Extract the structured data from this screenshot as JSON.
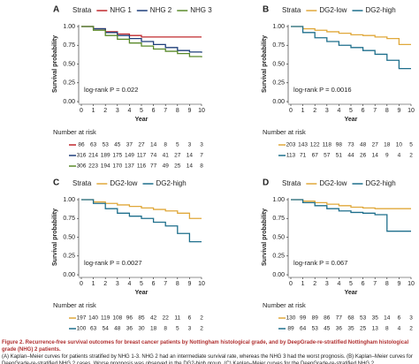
{
  "chart_data": [
    {
      "type": "line",
      "panel_label": "A",
      "legend_title": "Strata",
      "xlabel": "Year",
      "ylabel": "Survival probability",
      "annotation": "log-rank P = 0.022",
      "risk_table_title": "Number at risk",
      "x": [
        0,
        1,
        2,
        3,
        4,
        5,
        6,
        7,
        8,
        9,
        10
      ],
      "xlim": [
        0,
        10
      ],
      "xticks": [
        0,
        1,
        2,
        3,
        4,
        5,
        6,
        7,
        8,
        9,
        10
      ],
      "ylim": [
        0,
        1
      ],
      "yticks": [
        {
          "value": 0,
          "label": "0.00"
        },
        {
          "value": 0.25,
          "label": "0.25"
        },
        {
          "value": 0.5,
          "label": "0.50"
        },
        {
          "value": 0.75,
          "label": "0.75"
        },
        {
          "value": 1,
          "label": "1.00"
        }
      ],
      "series": [
        {
          "name": "NHG 1",
          "color": "#c0282d",
          "values": [
            1,
            0.97,
            0.93,
            0.9,
            0.88,
            0.86,
            0.86,
            0.86,
            0.86,
            0.86,
            0.86
          ],
          "at_risk": [
            86,
            63,
            53,
            45,
            37,
            27,
            14,
            8,
            5,
            3,
            3
          ]
        },
        {
          "name": "NHG 2",
          "color": "#1f3f7a",
          "values": [
            1,
            0.97,
            0.92,
            0.88,
            0.84,
            0.8,
            0.76,
            0.72,
            0.68,
            0.66,
            0.65
          ],
          "at_risk": [
            316,
            214,
            189,
            175,
            149,
            117,
            74,
            41,
            27,
            14,
            7
          ]
        },
        {
          "name": "NHG 3",
          "color": "#5a8a2a",
          "values": [
            1,
            0.95,
            0.88,
            0.83,
            0.78,
            0.74,
            0.7,
            0.67,
            0.64,
            0.6,
            0.59
          ],
          "at_risk": [
            306,
            223,
            194,
            170,
            137,
            116,
            77,
            49,
            25,
            14,
            8
          ]
        }
      ]
    },
    {
      "type": "line",
      "panel_label": "B",
      "legend_title": "Strata",
      "xlabel": "Year",
      "ylabel": "Survival probability",
      "annotation": "log-rank P = 0.0016",
      "risk_table_title": "Number at risk",
      "x": [
        0,
        1,
        2,
        3,
        4,
        5,
        6,
        7,
        8,
        9,
        10
      ],
      "xlim": [
        0,
        10
      ],
      "xticks": [
        0,
        1,
        2,
        3,
        4,
        5,
        6,
        7,
        8,
        9,
        10
      ],
      "ylim": [
        0,
        1
      ],
      "yticks": [
        {
          "value": 0,
          "label": "0.00"
        },
        {
          "value": 0.25,
          "label": "0.25"
        },
        {
          "value": 0.5,
          "label": "0.50"
        },
        {
          "value": 0.75,
          "label": "0.75"
        },
        {
          "value": 1,
          "label": "1.00"
        }
      ],
      "series": [
        {
          "name": "DG2-low",
          "color": "#e0a83a",
          "values": [
            1,
            0.97,
            0.95,
            0.93,
            0.91,
            0.89,
            0.88,
            0.86,
            0.84,
            0.76,
            0.76
          ],
          "at_risk": [
            203,
            143,
            122,
            118,
            98,
            73,
            48,
            27,
            18,
            10,
            5
          ]
        },
        {
          "name": "DG2-high",
          "color": "#1e6f8c",
          "values": [
            1,
            0.92,
            0.85,
            0.8,
            0.75,
            0.72,
            0.68,
            0.63,
            0.55,
            0.44,
            0.44
          ],
          "at_risk": [
            113,
            71,
            67,
            57,
            51,
            44,
            26,
            14,
            9,
            4,
            2
          ]
        }
      ]
    },
    {
      "type": "line",
      "panel_label": "C",
      "legend_title": "Strata",
      "xlabel": "Year",
      "ylabel": "Survival probability",
      "annotation": "log-rank P = 0.0027",
      "risk_table_title": "Number at risk",
      "x": [
        0,
        1,
        2,
        3,
        4,
        5,
        6,
        7,
        8,
        9,
        10
      ],
      "xlim": [
        0,
        10
      ],
      "xticks": [
        0,
        1,
        2,
        3,
        4,
        5,
        6,
        7,
        8,
        9,
        10
      ],
      "ylim": [
        0,
        1
      ],
      "yticks": [
        {
          "value": 0,
          "label": "0.00"
        },
        {
          "value": 0.25,
          "label": "0.25"
        },
        {
          "value": 0.5,
          "label": "0.50"
        },
        {
          "value": 0.75,
          "label": "0.75"
        },
        {
          "value": 1,
          "label": "1.00"
        }
      ],
      "series": [
        {
          "name": "DG2-low",
          "color": "#e0a83a",
          "values": [
            1,
            0.97,
            0.95,
            0.93,
            0.91,
            0.89,
            0.87,
            0.85,
            0.82,
            0.75,
            0.75
          ],
          "at_risk": [
            197,
            140,
            119,
            108,
            96,
            85,
            42,
            22,
            11,
            6,
            2
          ]
        },
        {
          "name": "DG2-high",
          "color": "#1e6f8c",
          "values": [
            1,
            0.95,
            0.88,
            0.82,
            0.78,
            0.75,
            0.7,
            0.65,
            0.55,
            0.44,
            0.44
          ],
          "at_risk": [
            100,
            63,
            54,
            48,
            36,
            30,
            18,
            8,
            5,
            3,
            2
          ]
        }
      ]
    },
    {
      "type": "line",
      "panel_label": "D",
      "legend_title": "Strata",
      "xlabel": "Year",
      "ylabel": "Survival probability",
      "annotation": "log-rank P = 0.067",
      "risk_table_title": "Number at risk",
      "x": [
        0,
        1,
        2,
        3,
        4,
        5,
        6,
        7,
        8,
        9,
        10
      ],
      "xlim": [
        0,
        10
      ],
      "xticks": [
        0,
        1,
        2,
        3,
        4,
        5,
        6,
        7,
        8,
        9,
        10
      ],
      "ylim": [
        0,
        1
      ],
      "yticks": [
        {
          "value": 0,
          "label": "0.00"
        },
        {
          "value": 0.25,
          "label": "0.25"
        },
        {
          "value": 0.5,
          "label": "0.50"
        },
        {
          "value": 0.75,
          "label": "0.75"
        },
        {
          "value": 1,
          "label": "1.00"
        }
      ],
      "series": [
        {
          "name": "DG2-low",
          "color": "#e0a83a",
          "values": [
            1,
            0.98,
            0.96,
            0.94,
            0.92,
            0.9,
            0.89,
            0.88,
            0.88,
            0.88,
            0.88
          ],
          "at_risk": [
            130,
            99,
            89,
            86,
            77,
            68,
            53,
            35,
            14,
            6,
            3
          ]
        },
        {
          "name": "DG2-high",
          "color": "#1e6f8c",
          "values": [
            1,
            0.96,
            0.92,
            0.88,
            0.85,
            0.83,
            0.82,
            0.8,
            0.58,
            0.58,
            0.58
          ],
          "at_risk": [
            89,
            64,
            53,
            45,
            36,
            35,
            25,
            13,
            8,
            4,
            2
          ]
        }
      ]
    }
  ],
  "caption": {
    "title": "Figure 2.  Recurrence-free survival outcomes for breast cancer patients by Nottingham histological grade, and by DeepGrade-re-stratified Nottingham histological grade (NHG) 2 patients.",
    "text": "(A) Kaplan–Meier curves for patients stratified by NHG 1-3. NHG 2 had an intermediate survival rate, whereas the NHG 3 had the worst prognosis. (B) Kaplan–Meier curves for DeepGrade-re-stratified NHG 2 cases. Worse prognosis was observed in the DG2-high group. (C) Kaplan–Meier curves for the DeepGrade-re-stratified NHG 2"
  }
}
